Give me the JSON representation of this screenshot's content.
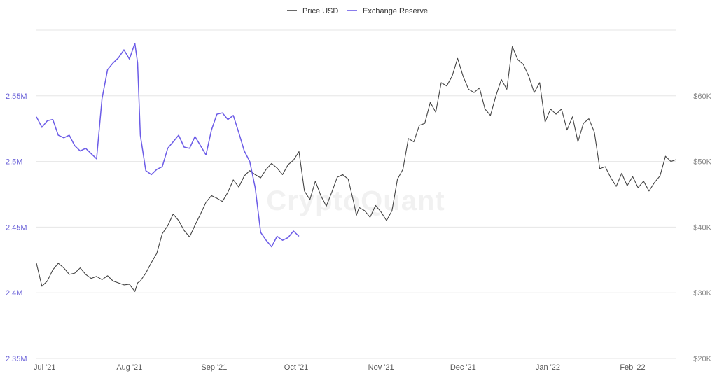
{
  "watermark": "CryptoQuant",
  "chart_data": {
    "type": "line",
    "title": "",
    "legend_position": "top-center",
    "grid": true,
    "x_ticks": [
      "Jul '21",
      "Aug '21",
      "Sep '21",
      "Oct '21",
      "Nov '21",
      "Dec '21",
      "Jan '22",
      "Feb '22"
    ],
    "x_tick_days": [
      1,
      32,
      63,
      93,
      124,
      154,
      185,
      216
    ],
    "x_range_days": [
      -2,
      232
    ],
    "y_left": {
      "ticks": [
        "2.35M",
        "2.4M",
        "2.45M",
        "2.5M",
        "2.55M"
      ],
      "tick_values": [
        2350000,
        2400000,
        2450000,
        2500000,
        2550000
      ],
      "range": [
        2350000,
        2600000
      ]
    },
    "y_right": {
      "ticks": [
        "$20K",
        "$30K",
        "$40K",
        "$50K",
        "$60K"
      ],
      "tick_values": [
        20000,
        30000,
        40000,
        50000,
        60000
      ],
      "range": [
        20000,
        70000
      ]
    },
    "series": [
      {
        "name": "Price USD",
        "axis": "right",
        "color": "#444444",
        "points": [
          [
            -2,
            34500
          ],
          [
            0,
            31000
          ],
          [
            2,
            31800
          ],
          [
            4,
            33500
          ],
          [
            6,
            34500
          ],
          [
            8,
            33800
          ],
          [
            10,
            32800
          ],
          [
            12,
            33000
          ],
          [
            14,
            33800
          ],
          [
            16,
            32800
          ],
          [
            18,
            32200
          ],
          [
            20,
            32500
          ],
          [
            22,
            32000
          ],
          [
            24,
            32600
          ],
          [
            26,
            31800
          ],
          [
            28,
            31500
          ],
          [
            30,
            31200
          ],
          [
            32,
            31300
          ],
          [
            34,
            30200
          ],
          [
            35,
            31500
          ],
          [
            36,
            31800
          ],
          [
            38,
            33000
          ],
          [
            40,
            34600
          ],
          [
            42,
            36000
          ],
          [
            44,
            39000
          ],
          [
            46,
            40200
          ],
          [
            48,
            42000
          ],
          [
            50,
            41000
          ],
          [
            52,
            39500
          ],
          [
            54,
            38500
          ],
          [
            56,
            40300
          ],
          [
            58,
            42000
          ],
          [
            60,
            43800
          ],
          [
            62,
            44800
          ],
          [
            64,
            44400
          ],
          [
            66,
            43900
          ],
          [
            68,
            45300
          ],
          [
            70,
            47200
          ],
          [
            72,
            46100
          ],
          [
            74,
            47800
          ],
          [
            76,
            48600
          ],
          [
            78,
            48000
          ],
          [
            80,
            47500
          ],
          [
            82,
            48800
          ],
          [
            84,
            49700
          ],
          [
            86,
            49000
          ],
          [
            88,
            48000
          ],
          [
            90,
            49500
          ],
          [
            92,
            50200
          ],
          [
            94,
            51500
          ],
          [
            95,
            48500
          ],
          [
            96,
            45500
          ],
          [
            98,
            44200
          ],
          [
            100,
            47000
          ],
          [
            102,
            44800
          ],
          [
            104,
            43200
          ],
          [
            106,
            45300
          ],
          [
            108,
            47600
          ],
          [
            110,
            48000
          ],
          [
            112,
            47300
          ],
          [
            114,
            43800
          ],
          [
            115,
            41800
          ],
          [
            116,
            43000
          ],
          [
            118,
            42500
          ],
          [
            120,
            41500
          ],
          [
            122,
            43300
          ],
          [
            124,
            42300
          ],
          [
            126,
            41000
          ],
          [
            128,
            42500
          ],
          [
            130,
            47300
          ],
          [
            132,
            48800
          ],
          [
            134,
            53500
          ],
          [
            136,
            53000
          ],
          [
            138,
            55500
          ],
          [
            140,
            55800
          ],
          [
            142,
            59000
          ],
          [
            144,
            57500
          ],
          [
            146,
            62000
          ],
          [
            148,
            61500
          ],
          [
            150,
            63000
          ],
          [
            152,
            65700
          ],
          [
            154,
            63000
          ],
          [
            156,
            61000
          ],
          [
            158,
            60500
          ],
          [
            160,
            61200
          ],
          [
            162,
            58000
          ],
          [
            164,
            57000
          ],
          [
            166,
            60000
          ],
          [
            168,
            62500
          ],
          [
            170,
            61000
          ],
          [
            172,
            67500
          ],
          [
            174,
            65500
          ],
          [
            176,
            64800
          ],
          [
            178,
            63000
          ],
          [
            180,
            60500
          ],
          [
            182,
            62000
          ],
          [
            184,
            56000
          ],
          [
            186,
            58000
          ],
          [
            188,
            57200
          ],
          [
            190,
            58000
          ],
          [
            192,
            54800
          ],
          [
            194,
            56800
          ],
          [
            196,
            53000
          ],
          [
            198,
            55800
          ],
          [
            200,
            56500
          ],
          [
            202,
            54500
          ],
          [
            204,
            48900
          ],
          [
            206,
            49200
          ],
          [
            208,
            47500
          ],
          [
            210,
            46200
          ],
          [
            212,
            48200
          ],
          [
            214,
            46300
          ],
          [
            216,
            47700
          ],
          [
            218,
            46000
          ],
          [
            220,
            47000
          ],
          [
            222,
            45500
          ],
          [
            224,
            46800
          ],
          [
            226,
            47800
          ],
          [
            228,
            50800
          ],
          [
            230,
            50000
          ],
          [
            232,
            50300
          ]
        ]
      },
      {
        "name": "Exchange Reserve",
        "axis": "left",
        "color": "#6c5ce7",
        "points": [
          [
            -2,
            2534000
          ],
          [
            0,
            2526000
          ],
          [
            2,
            2531000
          ],
          [
            4,
            2532000
          ],
          [
            6,
            2520000
          ],
          [
            8,
            2518000
          ],
          [
            10,
            2520000
          ],
          [
            12,
            2512000
          ],
          [
            14,
            2508000
          ],
          [
            16,
            2510000
          ],
          [
            18,
            2506000
          ],
          [
            20,
            2502000
          ],
          [
            22,
            2548000
          ],
          [
            24,
            2570000
          ],
          [
            26,
            2575000
          ],
          [
            28,
            2579000
          ],
          [
            30,
            2585000
          ],
          [
            32,
            2578000
          ],
          [
            34,
            2590000
          ],
          [
            35,
            2575000
          ],
          [
            36,
            2520000
          ],
          [
            38,
            2493000
          ],
          [
            40,
            2490000
          ],
          [
            42,
            2494000
          ],
          [
            44,
            2496000
          ],
          [
            46,
            2510000
          ],
          [
            48,
            2515000
          ],
          [
            50,
            2520000
          ],
          [
            52,
            2511000
          ],
          [
            54,
            2510000
          ],
          [
            56,
            2519000
          ],
          [
            58,
            2512000
          ],
          [
            60,
            2505000
          ],
          [
            62,
            2524000
          ],
          [
            64,
            2536000
          ],
          [
            66,
            2537000
          ],
          [
            68,
            2532000
          ],
          [
            70,
            2535000
          ],
          [
            72,
            2522000
          ],
          [
            74,
            2508000
          ],
          [
            76,
            2500000
          ],
          [
            78,
            2480000
          ],
          [
            80,
            2446000
          ],
          [
            82,
            2440000
          ],
          [
            84,
            2435000
          ],
          [
            86,
            2443000
          ],
          [
            88,
            2440000
          ],
          [
            90,
            2442000
          ],
          [
            92,
            2447000
          ],
          [
            94,
            2443000
          ]
        ]
      }
    ]
  }
}
